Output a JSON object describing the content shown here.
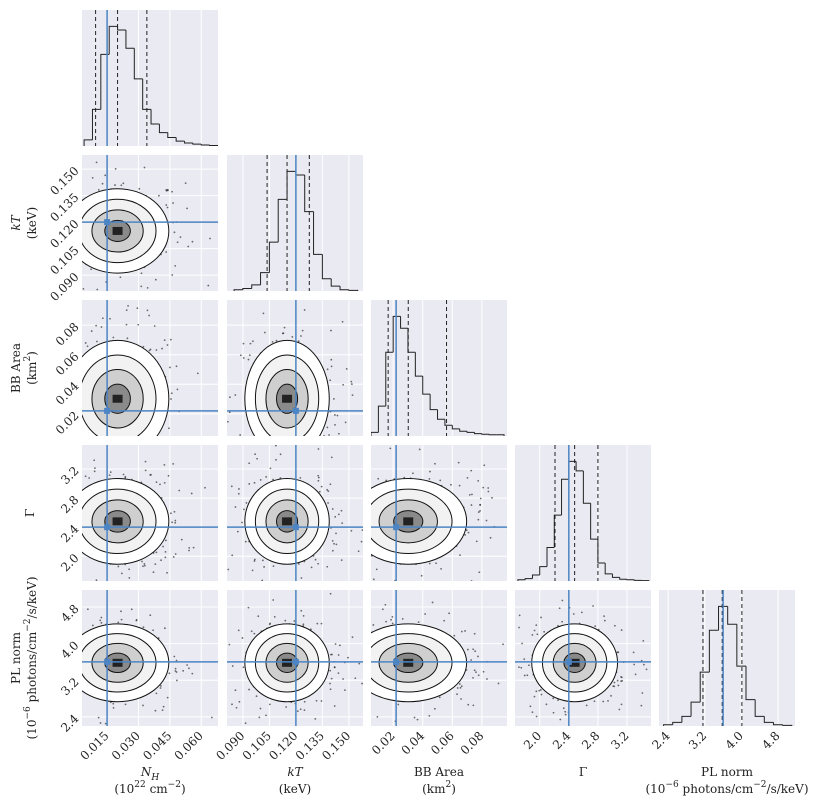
{
  "chart_data": {
    "type": "corner",
    "params": [
      {
        "label": [
          {
            "text": "N",
            "italic": true
          },
          {
            "text": "H",
            "sub": true,
            "italic": true
          }
        ],
        "unit": [
          {
            "text": "(10"
          },
          {
            "text": "22",
            "sup": true
          },
          {
            "text": " cm"
          },
          {
            "text": "−2",
            "sup": true
          },
          {
            "text": ")"
          }
        ],
        "lim": [
          0.003,
          0.068
        ],
        "ticks": [
          0.015,
          {
            "value": 0.03,
            "label": "0.030"
          },
          0.045,
          {
            "value": 0.06,
            "label": "0.060"
          }
        ],
        "truth": 0.015,
        "quantiles": [
          0.0095,
          0.02,
          0.034
        ],
        "bins": [
          0.004,
          0.008,
          0.012,
          0.016,
          0.02,
          0.024,
          0.028,
          0.032,
          0.036,
          0.04,
          0.044,
          0.048,
          0.052,
          0.056,
          0.06,
          0.064,
          0.068
        ],
        "counts": [
          5,
          30,
          75,
          98,
          95,
          80,
          55,
          30,
          18,
          11,
          7,
          4,
          2.5,
          1.5,
          0.8,
          0.4
        ]
      },
      {
        "label": [
          {
            "text": "kT",
            "italic": true
          }
        ],
        "unit": [
          {
            "text": "(keV)"
          }
        ],
        "lim": [
          0.081,
          0.158
        ],
        "ticks": [
          {
            "value": 0.09,
            "label": "0.090"
          },
          0.105,
          {
            "value": 0.12,
            "label": "0.120"
          },
          0.135,
          {
            "value": 0.15,
            "label": "0.150"
          }
        ],
        "truth": 0.12,
        "quantiles": [
          0.1037,
          0.115,
          0.1276
        ],
        "bins": [
          0.085,
          0.09,
          0.095,
          0.1,
          0.105,
          0.11,
          0.115,
          0.12,
          0.125,
          0.13,
          0.135,
          0.14,
          0.145,
          0.15,
          0.155
        ],
        "counts": [
          1,
          2,
          5,
          15,
          40,
          75,
          98,
          95,
          65,
          30,
          10,
          4,
          1,
          0.5
        ]
      },
      {
        "label": [
          {
            "text": "BB Area"
          }
        ],
        "unit": [
          {
            "text": "(km"
          },
          {
            "text": "2",
            "sup": true
          },
          {
            "text": ")"
          }
        ],
        "lim": [
          0.005,
          0.097
        ],
        "ticks": [
          0.02,
          0.04,
          0.06,
          0.08
        ],
        "truth": 0.022,
        "quantiles": [
          0.0166,
          0.0302,
          0.0561
        ],
        "bins": [
          0.005,
          0.01,
          0.015,
          0.02,
          0.025,
          0.03,
          0.035,
          0.04,
          0.045,
          0.05,
          0.055,
          0.06,
          0.065,
          0.07,
          0.075,
          0.08,
          0.085,
          0.09,
          0.095
        ],
        "counts": [
          3,
          25,
          70,
          100,
          90,
          70,
          50,
          35,
          22,
          14,
          9,
          6,
          4,
          3,
          2,
          1.5,
          1,
          1
        ]
      },
      {
        "label": [
          {
            "text": "Γ"
          }
        ],
        "unit": [],
        "lim": [
          1.66,
          3.53
        ],
        "ticks": [
          {
            "value": 2,
            "label": "2.0"
          },
          2.4,
          2.8,
          3.2
        ],
        "truth": 2.4,
        "quantiles": [
          2.21,
          2.48,
          2.8
        ],
        "bins": [
          1.7,
          1.8,
          1.9,
          2,
          2.1,
          2.2,
          2.3,
          2.4,
          2.5,
          2.6,
          2.7,
          2.8,
          2.9,
          3,
          3.1,
          3.2,
          3.3,
          3.4,
          3.5
        ],
        "counts": [
          1,
          2,
          5,
          12,
          28,
          55,
          85,
          100,
          92,
          65,
          35,
          15,
          6,
          3,
          1.5,
          1,
          0.5,
          0.3
        ]
      },
      {
        "label": [
          {
            "text": "PL norm"
          }
        ],
        "unit": [
          {
            "text": "(10"
          },
          {
            "text": "−6",
            "sup": true
          },
          {
            "text": " photons/cm"
          },
          {
            "text": "−2",
            "sup": true
          },
          {
            "text": "/s/keV)"
          }
        ],
        "lim": [
          2.2,
          5.17
        ],
        "ticks": [
          2.4,
          3.2,
          {
            "value": 4,
            "label": "4.0"
          },
          4.8
        ],
        "truth": 3.6,
        "quantiles": [
          3.16,
          3.58,
          4.01
        ],
        "bins": [
          2.3,
          2.5,
          2.7,
          2.9,
          3.1,
          3.3,
          3.5,
          3.7,
          3.9,
          4.1,
          4.3,
          4.5,
          4.7,
          4.9,
          5.1
        ],
        "counts": [
          1,
          3,
          8,
          20,
          45,
          80,
          100,
          85,
          50,
          22,
          8,
          3,
          1,
          0.5
        ]
      }
    ],
    "truth_color": "#4c84c4",
    "grid": true
  }
}
